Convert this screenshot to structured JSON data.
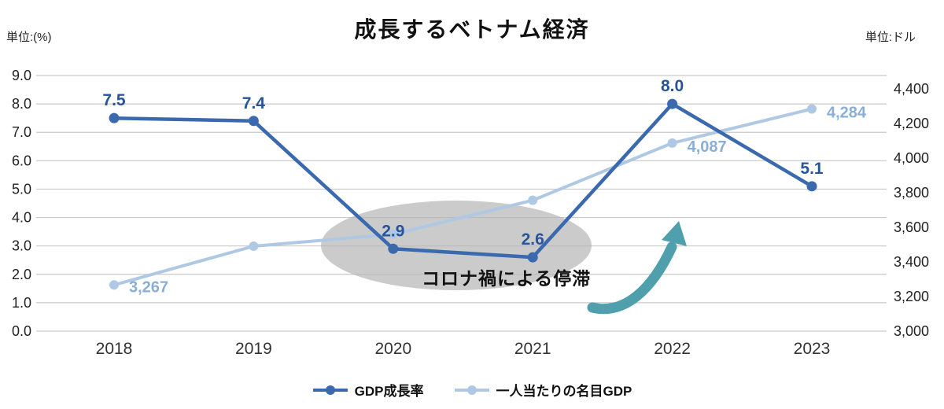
{
  "page": {
    "background": "#FFFFFF"
  },
  "chart_data": {
    "type": "line",
    "title": "成長するベトナム経済",
    "categories": [
      "2018",
      "2019",
      "2020",
      "2021",
      "2022",
      "2023"
    ],
    "series": [
      {
        "id": "gdp-growth",
        "name": "GDP成長率",
        "axis": "left",
        "color": "#3A69AE",
        "label_color": "#27549B",
        "values": [
          7.5,
          7.4,
          2.9,
          2.6,
          8.0,
          5.1
        ],
        "point_labels": [
          "7.5",
          "7.4",
          "2.9",
          "2.6",
          "8.0",
          "5.1"
        ]
      },
      {
        "id": "gdp-per-capita",
        "name": "一人当たりの名目GDP",
        "axis": "right",
        "color": "#AFC9E4",
        "label_color": "#8AAFD6",
        "values": [
          3267,
          3491,
          3560,
          3756,
          4087,
          4284
        ],
        "point_labels": [
          "3,267",
          "",
          "",
          "",
          "4,087",
          "4,284"
        ]
      }
    ],
    "left_axis": {
      "unit_label": "単位:(%)",
      "min": 0,
      "max": 9,
      "step": 1,
      "ticks": [
        "9.0",
        "8.0",
        "7.0",
        "6.0",
        "5.0",
        "4.0",
        "3.0",
        "2.0",
        "1.0",
        "0.0"
      ]
    },
    "right_axis": {
      "unit_label": "単位:ドル",
      "min": 3000,
      "max": 4400,
      "step": 200,
      "ticks": [
        "4,400",
        "4,200",
        "4,000",
        "3,800",
        "3,600",
        "3,400",
        "3,200",
        "3,000"
      ]
    },
    "annotation": {
      "text": "コロナ禍による停滞",
      "ellipse_color": "#B5B5B5",
      "arrow_color": "#4FA0AC"
    },
    "grid": true,
    "gridline_color": "#C9C9C9",
    "legend_position": "bottom"
  }
}
